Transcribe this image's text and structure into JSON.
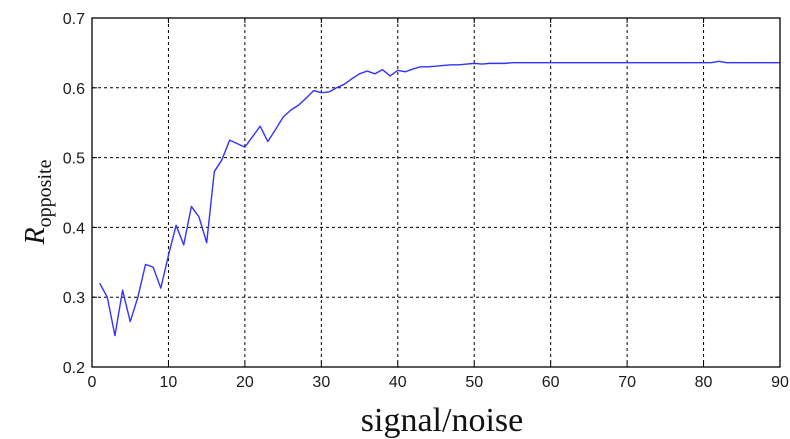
{
  "chart_data": {
    "type": "line",
    "title": "",
    "xlabel": "signal/noise",
    "ylabel": {
      "main": "R",
      "subscript": "opposite"
    },
    "xlim": [
      0,
      90
    ],
    "ylim": [
      0.2,
      0.7
    ],
    "xticks": [
      0,
      10,
      20,
      30,
      40,
      50,
      60,
      70,
      80,
      90
    ],
    "yticks": [
      0.2,
      0.3,
      0.4,
      0.5,
      0.6,
      0.7
    ],
    "xtick_labels": [
      "0",
      "10",
      "20",
      "30",
      "40",
      "50",
      "60",
      "70",
      "80",
      "90"
    ],
    "ytick_labels": [
      "0.2",
      "0.3",
      "0.4",
      "0.5",
      "0.6",
      "0.7"
    ],
    "grid": true,
    "series": [
      {
        "color": "#3333ff",
        "x": [
          1,
          2,
          3,
          4,
          5,
          6,
          7,
          8,
          9,
          10,
          11,
          12,
          13,
          14,
          15,
          16,
          17,
          18,
          19,
          20,
          21,
          22,
          23,
          24,
          25,
          26,
          27,
          28,
          29,
          30,
          31,
          32,
          33,
          34,
          35,
          36,
          37,
          38,
          39,
          40,
          41,
          42,
          43,
          44,
          45,
          46,
          47,
          48,
          49,
          50,
          51,
          52,
          53,
          54,
          55,
          56,
          57,
          58,
          59,
          60,
          61,
          62,
          63,
          64,
          65,
          66,
          67,
          68,
          69,
          70,
          71,
          72,
          73,
          74,
          75,
          76,
          77,
          78,
          79,
          80,
          81,
          82,
          83,
          84,
          85,
          86,
          87,
          88,
          89,
          90
        ],
        "y": [
          0.32,
          0.3,
          0.245,
          0.31,
          0.265,
          0.3,
          0.347,
          0.343,
          0.313,
          0.36,
          0.403,
          0.375,
          0.43,
          0.415,
          0.378,
          0.48,
          0.497,
          0.525,
          0.52,
          0.515,
          0.53,
          0.545,
          0.523,
          0.54,
          0.558,
          0.568,
          0.575,
          0.585,
          0.596,
          0.593,
          0.594,
          0.6,
          0.605,
          0.613,
          0.62,
          0.624,
          0.62,
          0.626,
          0.617,
          0.625,
          0.623,
          0.627,
          0.63,
          0.63,
          0.631,
          0.632,
          0.633,
          0.633,
          0.634,
          0.635,
          0.634,
          0.635,
          0.635,
          0.635,
          0.636,
          0.636,
          0.636,
          0.636,
          0.636,
          0.636,
          0.636,
          0.636,
          0.636,
          0.636,
          0.636,
          0.636,
          0.636,
          0.636,
          0.636,
          0.636,
          0.636,
          0.636,
          0.636,
          0.636,
          0.636,
          0.636,
          0.636,
          0.636,
          0.636,
          0.636,
          0.636,
          0.638,
          0.636,
          0.636,
          0.636,
          0.636,
          0.636,
          0.636,
          0.636,
          0.636
        ]
      }
    ]
  }
}
